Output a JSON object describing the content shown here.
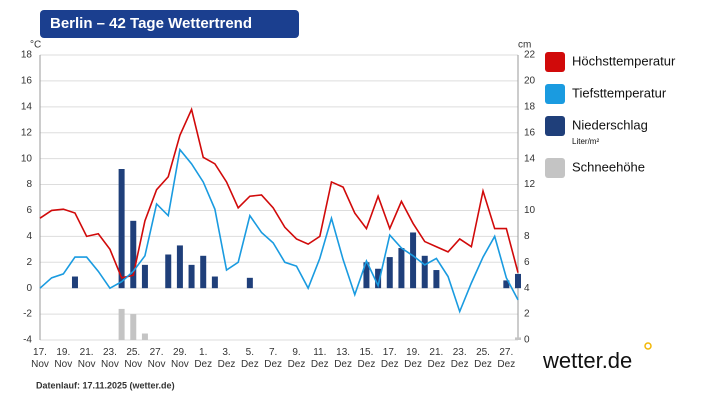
{
  "chart_data": {
    "type": "weather",
    "title": "Berlin – 42 Tage Wettertrend",
    "y_label": "°C",
    "y2_label": "cm",
    "footer": "Datenlauf: 17.11.2025 (wetter.de)",
    "logo": "wetter.de",
    "categories": [
      "17. Nov",
      null,
      "19. Nov",
      null,
      "21. Nov",
      null,
      "23. Nov",
      null,
      "25. Nov",
      null,
      "27. Nov",
      null,
      "29. Nov",
      null,
      "1. Dez",
      null,
      "3. Dez",
      null,
      "5. Dez",
      null,
      "7. Dez",
      null,
      "9. Dez",
      null,
      "11. Dez",
      null,
      "13. Dez",
      null,
      "15. Dez",
      null,
      "17. Dez",
      null,
      "19. Dez",
      null,
      "21. Dez",
      null,
      "23. Dez",
      null,
      "25. Dez",
      null,
      "27. Dez",
      null
    ],
    "ylim": [
      -4,
      18
    ],
    "yticks": [
      -4,
      -2,
      0,
      2,
      4,
      6,
      8,
      10,
      12,
      14,
      16,
      18
    ],
    "y2lim": [
      0,
      22
    ],
    "y2ticks": [
      0,
      2,
      4,
      6,
      8,
      10,
      12,
      14,
      16,
      18,
      20,
      22
    ],
    "grid": true,
    "series": [
      {
        "name": "Höchsttemperatur",
        "kind": "line",
        "color": "#d10a0a",
        "values": [
          5.4,
          6.0,
          6.1,
          5.8,
          4.0,
          4.2,
          3.0,
          0.8,
          1.0,
          5.2,
          7.6,
          8.6,
          11.8,
          13.8,
          10.1,
          9.6,
          8.2,
          6.2,
          7.1,
          7.2,
          6.2,
          4.7,
          3.8,
          3.4,
          4.0,
          8.2,
          7.8,
          5.8,
          4.6,
          7.1,
          4.6,
          6.7,
          5.0,
          3.6,
          3.2,
          2.8,
          3.8,
          3.2,
          7.5,
          4.6,
          4.6,
          1.2
        ]
      },
      {
        "name": "Tiefsttemperatur",
        "kind": "line",
        "color": "#1a9be0",
        "values": [
          0,
          0.8,
          1.1,
          2.4,
          2.4,
          1.3,
          0,
          0.5,
          1.3,
          2.5,
          6.5,
          5.6,
          10.7,
          9.6,
          8.2,
          6.1,
          1.4,
          2.0,
          5.6,
          4.3,
          3.5,
          2.0,
          1.7,
          0,
          2.3,
          5.4,
          2.2,
          -0.5,
          2.1,
          0.2,
          4.1,
          3.1,
          2.5,
          1.8,
          2.3,
          0.9,
          -1.8,
          0.4,
          2.4,
          4.0,
          0.8,
          -0.9
        ]
      },
      {
        "name": "Niederschlag",
        "unit": "Liter/m²",
        "kind": "bar",
        "color": "#1f3f7a",
        "values": [
          0,
          0,
          0,
          0.9,
          0,
          0,
          0,
          9.2,
          5.2,
          1.8,
          0,
          2.6,
          3.3,
          1.8,
          2.5,
          0.9,
          0,
          0,
          0.8,
          0,
          0,
          0,
          0,
          0,
          0,
          0,
          0,
          0,
          2.0,
          1.5,
          2.4,
          3.1,
          4.3,
          2.5,
          1.4,
          0,
          0,
          0,
          0,
          0,
          0.6,
          1.1
        ]
      },
      {
        "name": "Schneehöhe",
        "kind": "bar",
        "axis": "y2",
        "color": "#c4c4c4",
        "values": [
          0,
          0,
          0,
          0,
          0,
          0,
          0,
          2.4,
          2.0,
          0.5,
          0,
          0,
          0,
          0,
          0,
          0,
          0,
          0,
          0,
          0,
          0,
          0,
          0,
          0,
          0,
          0,
          0,
          0,
          0,
          0,
          0,
          0,
          0,
          0,
          0,
          0,
          0,
          0,
          0,
          0,
          0,
          0.2
        ]
      }
    ]
  }
}
